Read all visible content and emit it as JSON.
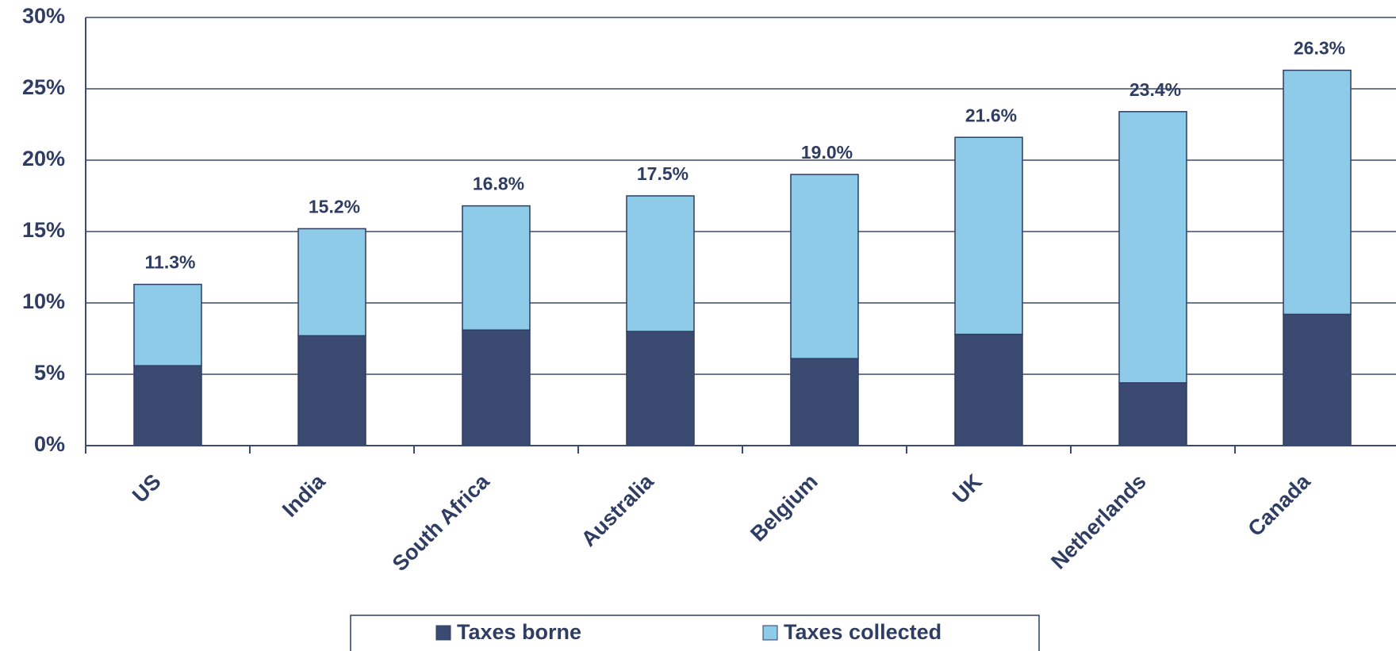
{
  "chart_data": {
    "type": "stacked_bar",
    "categories": [
      "US",
      "India",
      "South Africa",
      "Australia",
      "Belgium",
      "UK",
      "Netherlands",
      "Canada"
    ],
    "series": [
      {
        "name": "Taxes borne",
        "color": "#3b4a70",
        "values": [
          5.6,
          7.7,
          8.1,
          8.0,
          6.1,
          7.8,
          4.4,
          9.2
        ]
      },
      {
        "name": "Taxes collected",
        "color": "#8dcbe8",
        "values": [
          5.7,
          7.5,
          8.7,
          9.5,
          12.9,
          13.8,
          19.0,
          17.1
        ]
      }
    ],
    "total_labels": [
      "11.3%",
      "15.2%",
      "16.8%",
      "17.5%",
      "19.0%",
      "21.6%",
      "23.4%",
      "26.3%"
    ],
    "ylim": [
      0,
      30
    ],
    "yticks": [
      {
        "value": 0,
        "label": "0%"
      },
      {
        "value": 5,
        "label": "5%"
      },
      {
        "value": 10,
        "label": "10%"
      },
      {
        "value": 15,
        "label": "15%"
      },
      {
        "value": 20,
        "label": "20%"
      },
      {
        "value": 25,
        "label": "25%"
      },
      {
        "value": 30,
        "label": "30%"
      }
    ],
    "grid": true,
    "legend": "bottom"
  }
}
